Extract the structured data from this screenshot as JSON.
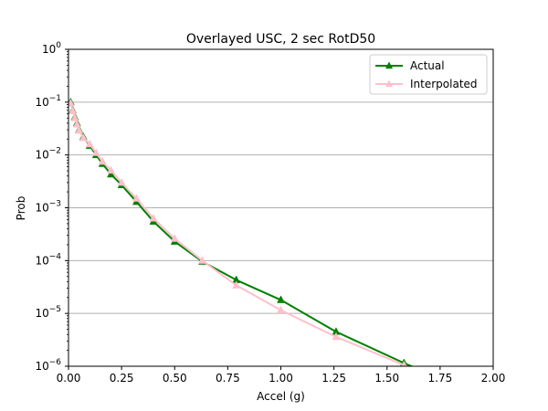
{
  "chart_data": {
    "type": "line",
    "title": "Overlayed USC, 2 sec RotD50",
    "xlabel": "Accel (g)",
    "ylabel": "Prob",
    "xlim": [
      0,
      2
    ],
    "ylim": [
      1e-06,
      1
    ],
    "yscale": "log",
    "grid": "horizontal major",
    "legend_position": "top-right",
    "x_ticks": [
      "0.00",
      "0.25",
      "0.50",
      "0.75",
      "1.00",
      "1.25",
      "1.50",
      "1.75",
      "2.00"
    ],
    "x_tick_values": [
      0,
      0.25,
      0.5,
      0.75,
      1.0,
      1.25,
      1.5,
      1.75,
      2.0
    ],
    "y_tick_exponents": [
      -6,
      -5,
      -4,
      -3,
      -2,
      -1,
      0
    ],
    "series": [
      {
        "name": "Actual",
        "color": "#008000",
        "marker": "triangle-up",
        "x": [
          0.01,
          0.02,
          0.03,
          0.04,
          0.05,
          0.07,
          0.1,
          0.13,
          0.16,
          0.2,
          0.25,
          0.32,
          0.4,
          0.5,
          0.63,
          0.79,
          1.0,
          1.26,
          1.58,
          2.0
        ],
        "y": [
          0.1,
          0.07,
          0.052,
          0.04,
          0.03,
          0.022,
          0.015,
          0.01,
          0.0068,
          0.0043,
          0.0027,
          0.0013,
          0.00055,
          0.00023,
          9.6e-05,
          4.3e-05,
          1.8e-05,
          4.5e-06,
          1.15e-06,
          2.2e-07
        ]
      },
      {
        "name": "Interpolated",
        "color": "#ffc0cb",
        "marker": "triangle-up",
        "x": [
          0.01,
          0.02,
          0.03,
          0.04,
          0.05,
          0.07,
          0.1,
          0.13,
          0.16,
          0.2,
          0.25,
          0.32,
          0.4,
          0.5,
          0.63,
          0.79,
          1.0,
          1.26,
          1.58,
          2.0
        ],
        "y": [
          0.095,
          0.068,
          0.05,
          0.038,
          0.029,
          0.021,
          0.016,
          0.011,
          0.0075,
          0.0051,
          0.003,
          0.0015,
          0.00063,
          0.00026,
          0.0001,
          3.4e-05,
          1.15e-05,
          3.6e-06,
          1.05e-06,
          2.2e-07
        ]
      }
    ]
  }
}
